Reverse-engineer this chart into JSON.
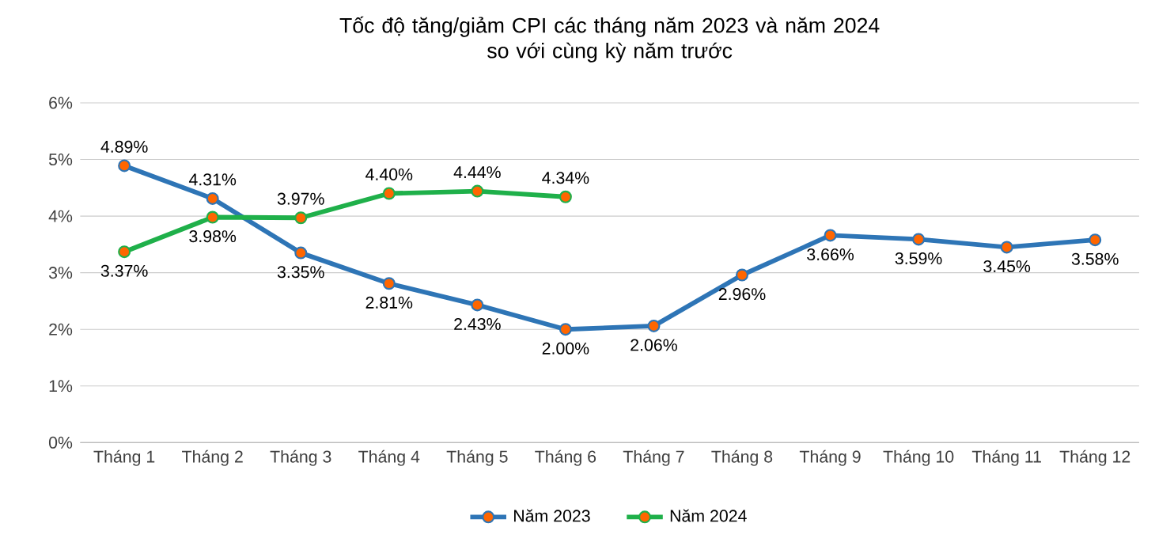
{
  "chart_data": {
    "type": "line",
    "title": "Tốc độ tăng/giảm CPI các tháng năm 2023 và năm 2024\nso với cùng kỳ năm trước",
    "categories": [
      "Tháng 1",
      "Tháng 2",
      "Tháng 3",
      "Tháng 4",
      "Tháng 5",
      "Tháng 6",
      "Tháng 7",
      "Tháng 8",
      "Tháng 9",
      "Tháng 10",
      "Tháng 11",
      "Tháng 12"
    ],
    "series": [
      {
        "name": "Năm 2023",
        "color": "#2e75b6",
        "values": [
          4.89,
          4.31,
          3.35,
          2.81,
          2.43,
          2.0,
          2.06,
          2.96,
          3.66,
          3.59,
          3.45,
          3.58
        ],
        "value_labels": [
          "4.89%",
          "4.31%",
          "3.35%",
          "2.81%",
          "2.43%",
          "2.00%",
          "2.06%",
          "2.96%",
          "3.66%",
          "3.59%",
          "3.45%",
          "3.58%"
        ]
      },
      {
        "name": "Năm 2024",
        "color": "#1fb04a",
        "values": [
          3.37,
          3.98,
          3.97,
          4.4,
          4.44,
          4.34,
          null,
          null,
          null,
          null,
          null,
          null
        ],
        "value_labels": [
          "3.37%",
          "3.98%",
          "3.97%",
          "4.40%",
          "4.44%",
          "4.34%",
          null,
          null,
          null,
          null,
          null,
          null
        ]
      }
    ],
    "ylim": [
      0,
      6
    ],
    "yticks": [
      {
        "value": 0,
        "label": "0%"
      },
      {
        "value": 1,
        "label": "1%"
      },
      {
        "value": 2,
        "label": "2%"
      },
      {
        "value": 3,
        "label": "3%"
      },
      {
        "value": 4,
        "label": "4%"
      },
      {
        "value": 5,
        "label": "5%"
      },
      {
        "value": 6,
        "label": "6%"
      }
    ],
    "grid": "y",
    "legend": "bottom",
    "marker": "circle",
    "line_style": "solid"
  }
}
